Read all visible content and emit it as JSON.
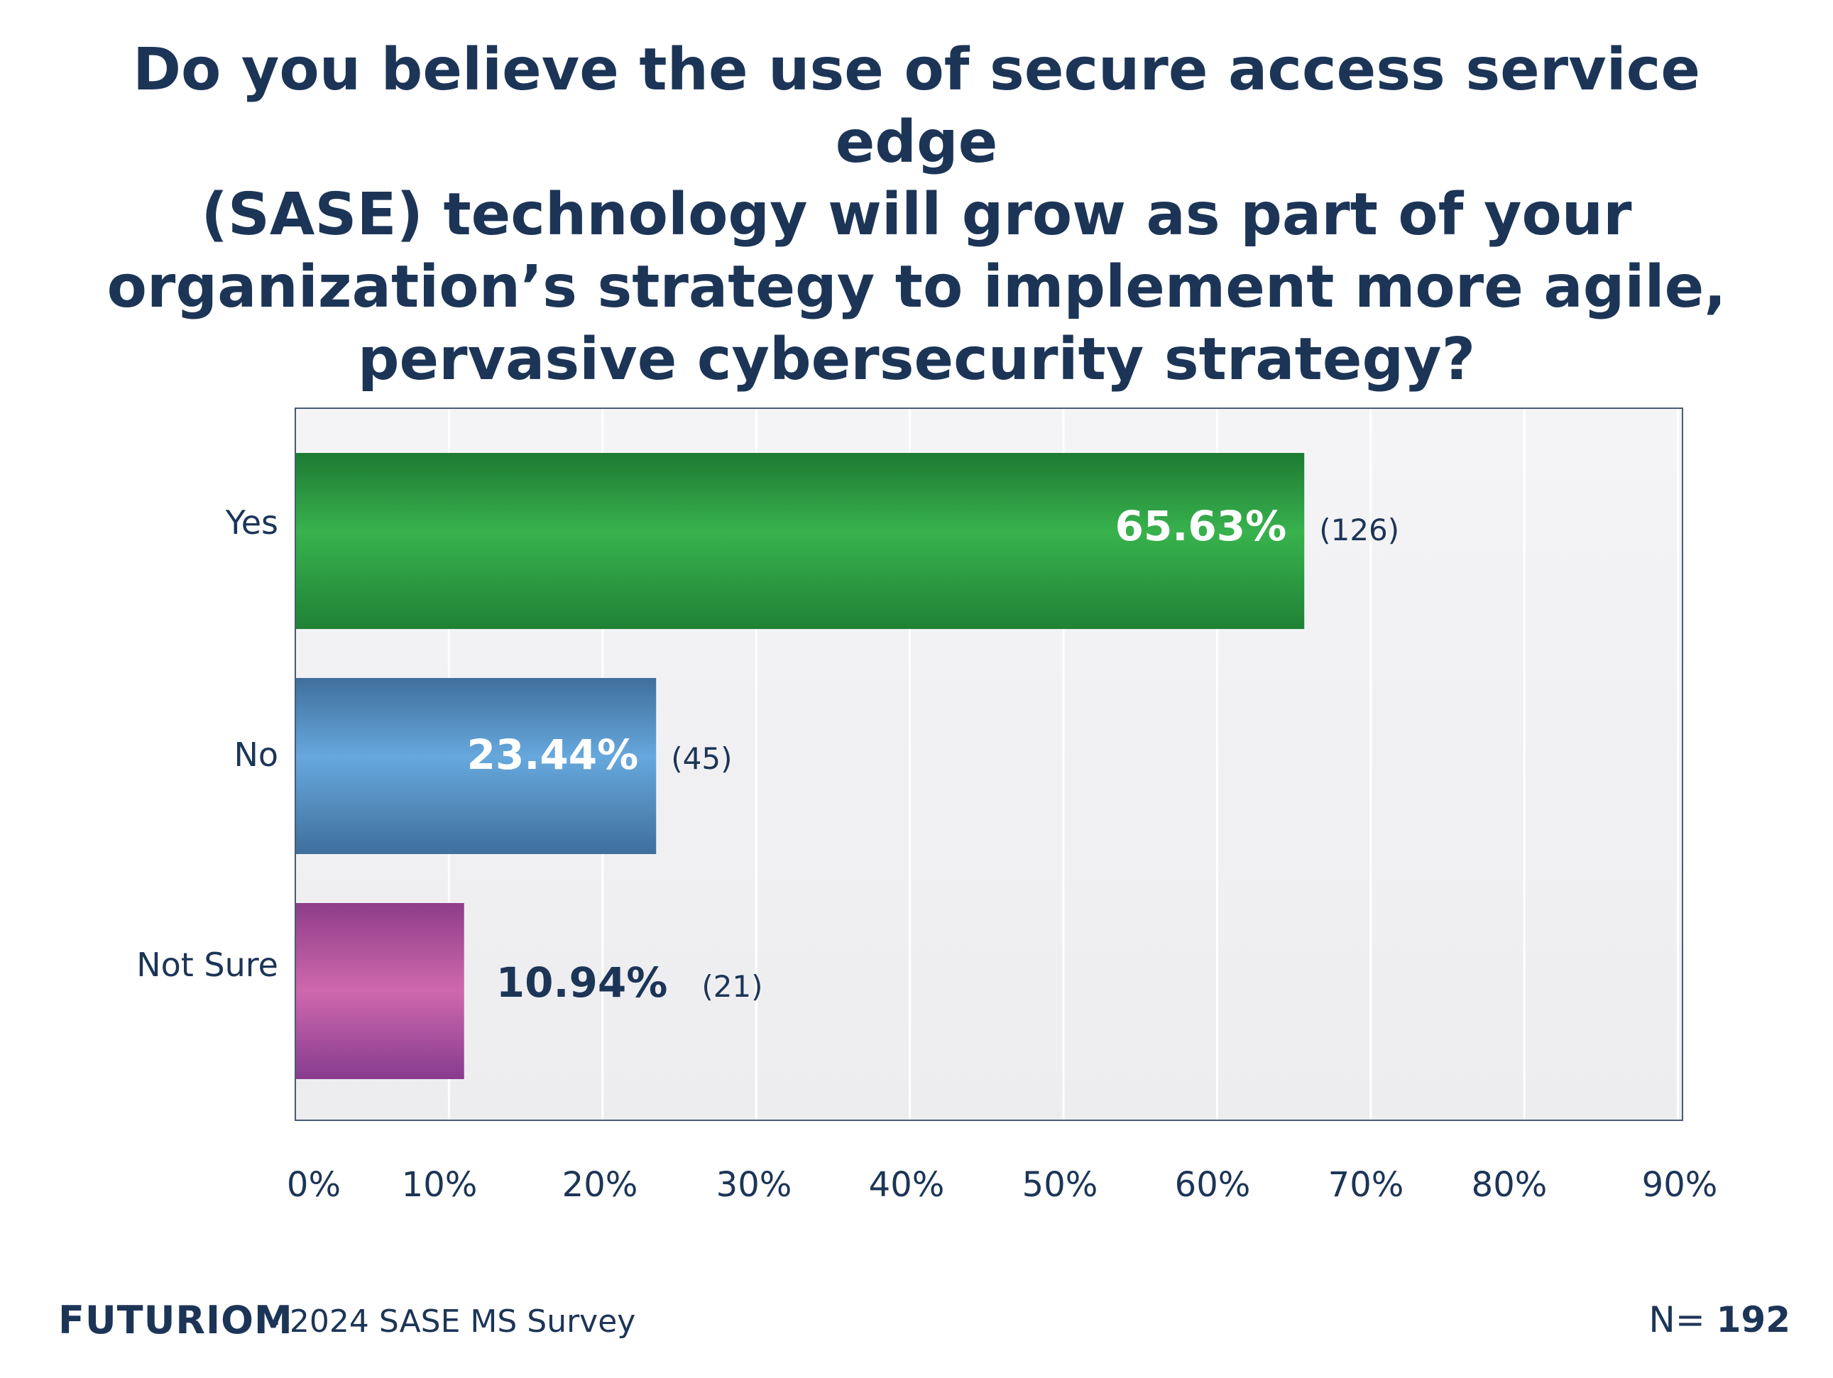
{
  "chart_data": {
    "type": "bar",
    "orientation": "horizontal",
    "title_lines": [
      "Do you believe the use of secure access service edge",
      "(SASE) technology will grow as part of your",
      "organization’s strategy to implement more agile,",
      "pervasive cybersecurity strategy?"
    ],
    "categories": [
      "Yes",
      "No",
      "Not Sure"
    ],
    "values": [
      65.63,
      23.44,
      10.94
    ],
    "value_labels": [
      "65.63%",
      "23.44%",
      "10.94%"
    ],
    "counts": [
      "(126)",
      "(45)",
      "(21)"
    ],
    "xlim": [
      0,
      90
    ],
    "xticks": [
      "0%",
      "10%",
      "20%",
      "30%",
      "40%",
      "50%",
      "60%",
      "70%",
      "80%",
      "90%"
    ],
    "grid": "vertical",
    "colors": {
      "Yes": "#2e9e45",
      "No": "#5b9bd5",
      "Not Sure": "#b6509f",
      "plot_background": "#f1f1f3",
      "text": "#1c3557"
    }
  },
  "footer": {
    "brand": "FUTURIOM",
    "source": "- 2024 SASE MS Survey",
    "n_label": "N= ",
    "n_value": "192"
  }
}
